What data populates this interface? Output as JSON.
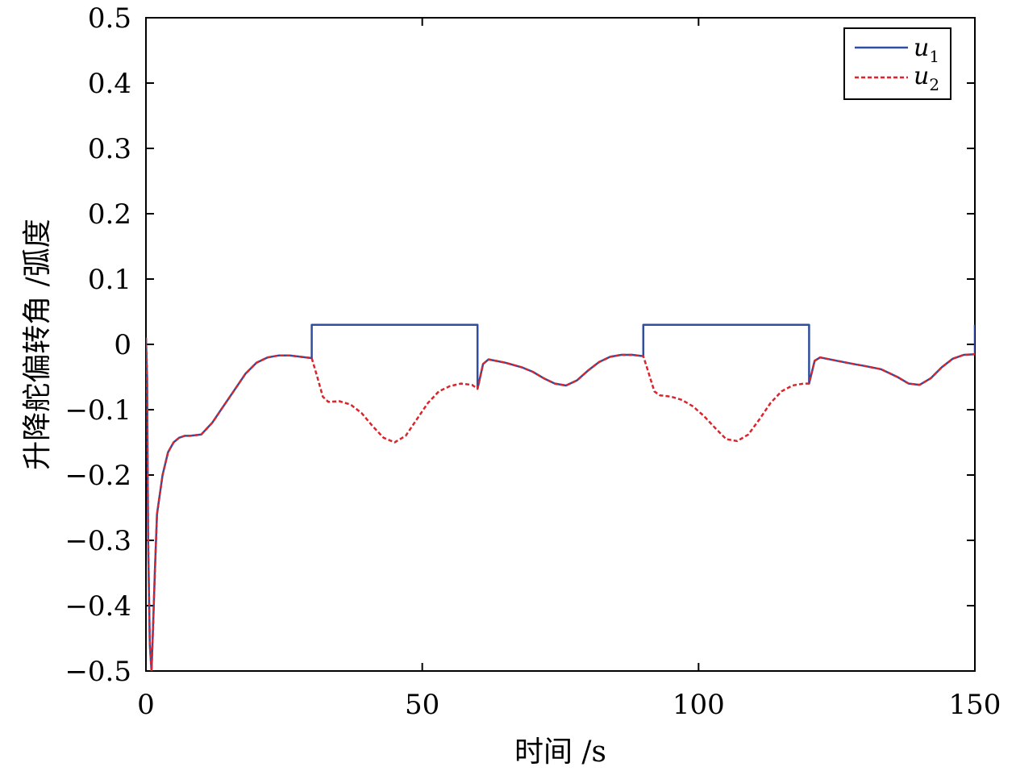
{
  "chart_data": {
    "type": "line",
    "title": "",
    "xlabel": "时间 /s",
    "ylabel": "升降舵偏转角 /弧度",
    "xlim": [
      0,
      150
    ],
    "ylim": [
      -0.5,
      0.5
    ],
    "xticks": [
      0,
      50,
      100,
      150
    ],
    "xtick_labels": [
      "0",
      "50",
      "100",
      "150"
    ],
    "yticks": [
      0.5,
      0.4,
      0.3,
      0.2,
      0.1,
      0,
      -0.1,
      -0.2,
      -0.3,
      -0.4,
      -0.5
    ],
    "ytick_labels": [
      "0.5",
      "0.4",
      "0.3",
      "0.2",
      "0.1",
      "0",
      "−0.1",
      "−0.2",
      "−0.3",
      "−0.4",
      "−0.5"
    ],
    "grid": false,
    "legend_position": "top-right",
    "colors": {
      "u1": "#2f4ea0",
      "u2": "#d8262c"
    },
    "series": [
      {
        "name": "u1",
        "legend_main": "u",
        "legend_sub": "1",
        "style": "solid",
        "x": [
          0,
          0.2,
          0.4,
          0.7,
          1.0,
          1.3,
          1.6,
          2.0,
          3.0,
          4.0,
          5.0,
          6.0,
          7.0,
          8.0,
          10.0,
          12.0,
          14.0,
          16.0,
          18.0,
          20.0,
          22.0,
          24.0,
          26.0,
          28.0,
          30.0,
          30.0,
          45.0,
          60.0,
          60.0,
          61.0,
          62.0,
          65.0,
          68.0,
          70.0,
          72.0,
          74.0,
          76.0,
          78.0,
          80.0,
          82.0,
          84.0,
          86.0,
          88.0,
          90.0,
          90.0,
          105.0,
          120.0,
          120.0,
          121.0,
          122.0,
          125.0,
          128.0,
          130.0,
          133.0,
          136.0,
          138.0,
          140.0,
          142.0,
          144.0,
          146.0,
          148.0,
          150.0,
          150.0
        ],
        "y": [
          0.01,
          -0.05,
          -0.3,
          -0.46,
          -0.5,
          -0.43,
          -0.35,
          -0.26,
          -0.2,
          -0.165,
          -0.15,
          -0.143,
          -0.14,
          -0.14,
          -0.138,
          -0.12,
          -0.095,
          -0.07,
          -0.045,
          -0.028,
          -0.02,
          -0.017,
          -0.017,
          -0.019,
          -0.021,
          0.03,
          0.03,
          0.03,
          -0.068,
          -0.03,
          -0.023,
          -0.028,
          -0.035,
          -0.042,
          -0.052,
          -0.06,
          -0.063,
          -0.055,
          -0.04,
          -0.027,
          -0.019,
          -0.016,
          -0.016,
          -0.018,
          0.03,
          0.03,
          0.03,
          -0.06,
          -0.025,
          -0.02,
          -0.025,
          -0.03,
          -0.033,
          -0.038,
          -0.05,
          -0.06,
          -0.062,
          -0.052,
          -0.035,
          -0.022,
          -0.016,
          -0.015,
          0.03
        ]
      },
      {
        "name": "u2",
        "legend_main": "u",
        "legend_sub": "2",
        "style": "dashed",
        "x": [
          0,
          0.2,
          0.4,
          0.7,
          1.0,
          1.3,
          1.6,
          2.0,
          3.0,
          4.0,
          5.0,
          6.0,
          7.0,
          8.0,
          10.0,
          12.0,
          14.0,
          16.0,
          18.0,
          20.0,
          22.0,
          24.0,
          26.0,
          28.0,
          30.0,
          31.0,
          32.0,
          33.0,
          35.0,
          37.0,
          39.0,
          41.0,
          43.0,
          45.0,
          47.0,
          49.0,
          51.0,
          53.0,
          55.0,
          57.0,
          59.0,
          60.0,
          61.0,
          62.0,
          65.0,
          68.0,
          70.0,
          72.0,
          74.0,
          76.0,
          78.0,
          80.0,
          82.0,
          84.0,
          86.0,
          88.0,
          90.0,
          91.0,
          92.0,
          93.0,
          95.0,
          97.0,
          99.0,
          101.0,
          103.0,
          105.0,
          107.0,
          109.0,
          111.0,
          113.0,
          115.0,
          117.0,
          119.0,
          120.0,
          121.0,
          122.0,
          125.0,
          128.0,
          130.0,
          133.0,
          136.0,
          138.0,
          140.0,
          142.0,
          144.0,
          146.0,
          148.0,
          150.0
        ],
        "y": [
          0.01,
          -0.05,
          -0.3,
          -0.46,
          -0.5,
          -0.43,
          -0.35,
          -0.26,
          -0.2,
          -0.165,
          -0.15,
          -0.143,
          -0.14,
          -0.14,
          -0.138,
          -0.12,
          -0.095,
          -0.07,
          -0.045,
          -0.028,
          -0.02,
          -0.017,
          -0.017,
          -0.019,
          -0.021,
          -0.05,
          -0.08,
          -0.088,
          -0.087,
          -0.092,
          -0.105,
          -0.125,
          -0.143,
          -0.15,
          -0.14,
          -0.115,
          -0.09,
          -0.072,
          -0.064,
          -0.06,
          -0.062,
          -0.068,
          -0.03,
          -0.023,
          -0.028,
          -0.035,
          -0.042,
          -0.052,
          -0.06,
          -0.063,
          -0.055,
          -0.04,
          -0.027,
          -0.019,
          -0.016,
          -0.016,
          -0.018,
          -0.045,
          -0.072,
          -0.078,
          -0.08,
          -0.085,
          -0.095,
          -0.11,
          -0.128,
          -0.145,
          -0.148,
          -0.138,
          -0.115,
          -0.09,
          -0.072,
          -0.063,
          -0.06,
          -0.06,
          -0.025,
          -0.02,
          -0.025,
          -0.03,
          -0.033,
          -0.038,
          -0.05,
          -0.06,
          -0.062,
          -0.052,
          -0.035,
          -0.022,
          -0.016,
          -0.015
        ]
      }
    ]
  }
}
